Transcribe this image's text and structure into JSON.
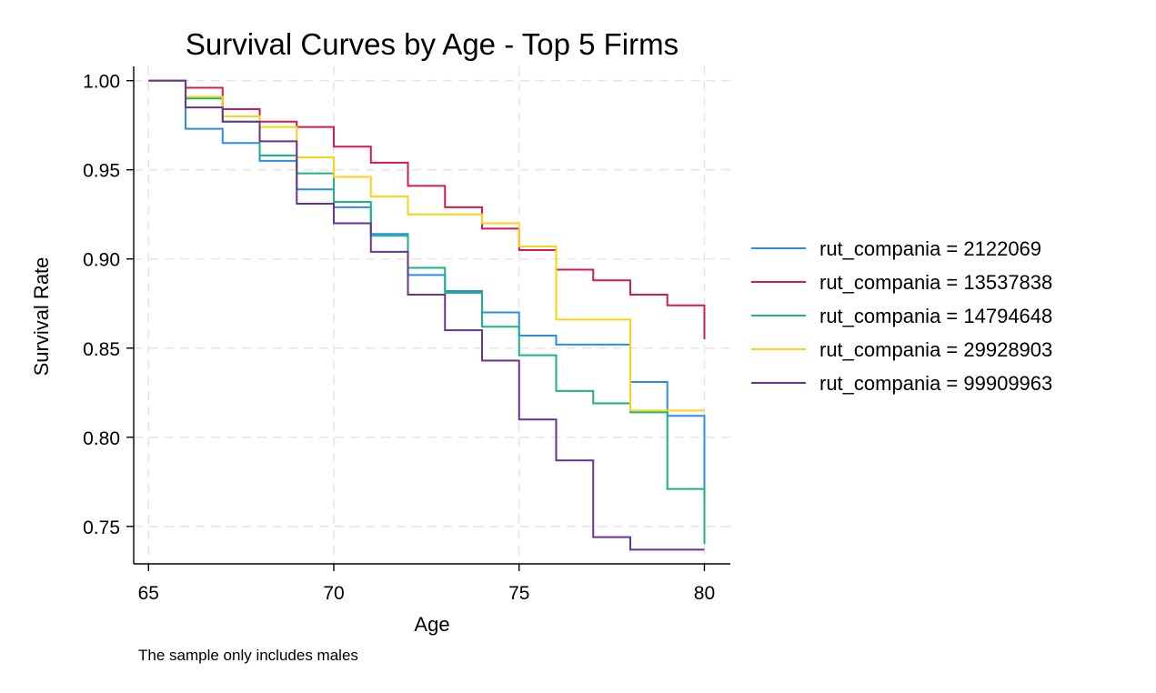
{
  "chart_data": {
    "type": "line",
    "step": true,
    "title": "Survival Curves by Age - Top 5 Firms",
    "xlabel": "Age",
    "ylabel": "Survival Rate",
    "note": "The sample only includes males",
    "xlim": [
      64.6,
      80.7
    ],
    "ylim": [
      0.729,
      1.008
    ],
    "xticks": [
      65,
      70,
      75,
      80
    ],
    "xtick_labels": [
      "65",
      "70",
      "75",
      "80"
    ],
    "yticks": [
      0.75,
      0.8,
      0.85,
      0.9,
      0.95,
      1.0
    ],
    "ytick_labels": [
      "0.75",
      "0.80",
      "0.85",
      "0.90",
      "0.95",
      "1.00"
    ],
    "grid": true,
    "legend_position": "right",
    "series": [
      {
        "name": "rut_compania = 2122069",
        "color": "#2a8ee8",
        "x": [
          65,
          66,
          67,
          68,
          69,
          70,
          71,
          72,
          73,
          74,
          75,
          76,
          77,
          78,
          79,
          80,
          80
        ],
        "values": [
          1.0,
          0.973,
          0.965,
          0.955,
          0.939,
          0.929,
          0.914,
          0.891,
          0.882,
          0.87,
          0.857,
          0.852,
          0.852,
          0.831,
          0.812,
          0.812,
          0.762
        ]
      },
      {
        "name": "rut_compania = 13537838",
        "color": "#d41a52",
        "x": [
          65,
          66,
          67,
          68,
          69,
          70,
          71,
          72,
          73,
          74,
          75,
          76,
          77,
          78,
          79,
          80,
          80
        ],
        "values": [
          1.0,
          0.996,
          0.984,
          0.977,
          0.974,
          0.963,
          0.954,
          0.941,
          0.929,
          0.917,
          0.905,
          0.894,
          0.888,
          0.88,
          0.874,
          0.874,
          0.855
        ]
      },
      {
        "name": "rut_compania = 14794648",
        "color": "#1bb382",
        "x": [
          65,
          66,
          67,
          68,
          69,
          70,
          71,
          72,
          73,
          74,
          75,
          76,
          77,
          78,
          79,
          80,
          80
        ],
        "values": [
          1.0,
          0.99,
          0.977,
          0.958,
          0.948,
          0.932,
          0.913,
          0.895,
          0.881,
          0.862,
          0.846,
          0.826,
          0.819,
          0.814,
          0.771,
          0.771,
          0.74
        ]
      },
      {
        "name": "rut_compania = 29928903",
        "color": "#fcd116",
        "x": [
          65,
          66,
          67,
          68,
          69,
          70,
          71,
          72,
          73,
          74,
          75,
          76,
          77,
          78,
          79,
          80
        ],
        "values": [
          1.0,
          0.991,
          0.98,
          0.974,
          0.957,
          0.946,
          0.935,
          0.925,
          0.925,
          0.92,
          0.907,
          0.866,
          0.866,
          0.815,
          0.815,
          0.815
        ]
      },
      {
        "name": "rut_compania = 99909963",
        "color": "#6a3392",
        "x": [
          65,
          66,
          67,
          68,
          69,
          70,
          71,
          72,
          73,
          74,
          75,
          76,
          77,
          78,
          79,
          80
        ],
        "values": [
          1.0,
          0.985,
          0.977,
          0.966,
          0.931,
          0.92,
          0.904,
          0.88,
          0.86,
          0.843,
          0.81,
          0.787,
          0.744,
          0.737,
          0.737,
          0.737
        ]
      }
    ]
  }
}
